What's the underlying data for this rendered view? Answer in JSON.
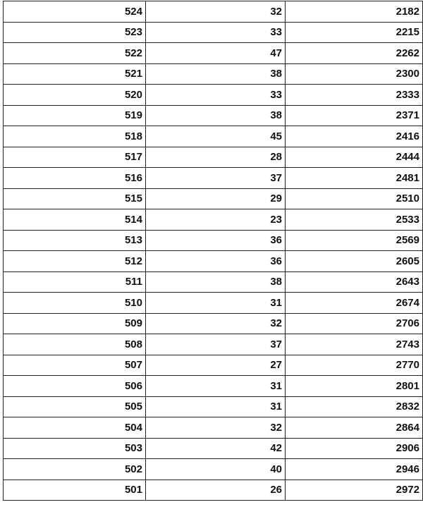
{
  "table": {
    "rows": [
      [
        "524",
        "32",
        "2182"
      ],
      [
        "523",
        "33",
        "2215"
      ],
      [
        "522",
        "47",
        "2262"
      ],
      [
        "521",
        "38",
        "2300"
      ],
      [
        "520",
        "33",
        "2333"
      ],
      [
        "519",
        "38",
        "2371"
      ],
      [
        "518",
        "45",
        "2416"
      ],
      [
        "517",
        "28",
        "2444"
      ],
      [
        "516",
        "37",
        "2481"
      ],
      [
        "515",
        "29",
        "2510"
      ],
      [
        "514",
        "23",
        "2533"
      ],
      [
        "513",
        "36",
        "2569"
      ],
      [
        "512",
        "36",
        "2605"
      ],
      [
        "511",
        "38",
        "2643"
      ],
      [
        "510",
        "31",
        "2674"
      ],
      [
        "509",
        "32",
        "2706"
      ],
      [
        "508",
        "37",
        "2743"
      ],
      [
        "507",
        "27",
        "2770"
      ],
      [
        "506",
        "31",
        "2801"
      ],
      [
        "505",
        "31",
        "2832"
      ],
      [
        "504",
        "32",
        "2864"
      ],
      [
        "503",
        "42",
        "2906"
      ],
      [
        "502",
        "40",
        "2946"
      ],
      [
        "501",
        "26",
        "2972"
      ]
    ]
  }
}
